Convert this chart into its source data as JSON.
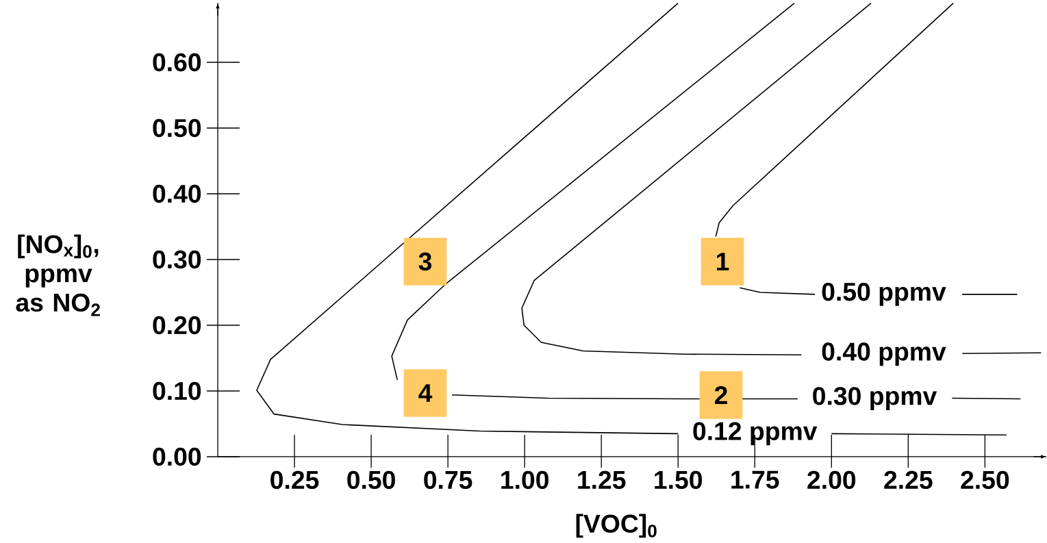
{
  "chart_data": {
    "type": "line",
    "xlabel": "[VOC]$_{0}$",
    "ylabel": "[NO$_{x}$]$_{0}$, ppmv as NO$_{2}$",
    "xlim": [
      0,
      2.7
    ],
    "ylim": [
      0,
      0.69
    ],
    "xticks": [
      0.25,
      {
        "value": 0.5,
        "label": "0.50"
      },
      0.75,
      {
        "value": 1.0,
        "label": "1.00"
      },
      1.25,
      {
        "value": 1.5,
        "label": "1.50"
      },
      1.75,
      {
        "value": 2.0,
        "label": "2.00"
      },
      2.25,
      {
        "value": 2.5,
        "label": "2.50"
      }
    ],
    "yticks": [
      {
        "value": 0,
        "label": "0.00"
      },
      {
        "value": 0.1,
        "label": "0.10"
      },
      {
        "value": 0.2,
        "label": "0.20"
      },
      {
        "value": 0.3,
        "label": "0.30"
      },
      {
        "value": 0.4,
        "label": "0.40"
      },
      {
        "value": 0.5,
        "label": "0.50"
      },
      {
        "value": 0.6,
        "label": "0.60"
      }
    ],
    "series": [
      {
        "name": "0.12 ppmv",
        "color": "#000000",
        "x": [
          1.5,
          0.172,
          0.127,
          0.183,
          0.406,
          0.853,
          1.5,
          1.75,
          2.0,
          2.57
        ],
        "values": [
          0.69,
          0.148,
          0.101,
          0.065,
          0.049,
          0.039,
          0.035,
          null,
          0.035,
          0.033
        ]
      },
      {
        "name": "0.30 ppmv",
        "color": "#000000",
        "x": [
          1.879,
          0.741,
          0.618,
          0.567,
          0.585,
          0.629,
          0.763,
          1.076,
          1.522,
          1.89,
          2.14,
          2.393,
          2.616
        ],
        "values": [
          0.69,
          0.262,
          0.208,
          0.153,
          0.117,
          null,
          0.094,
          0.089,
          0.088,
          0.088,
          null,
          0.089,
          0.088
        ]
      },
      {
        "name": "0.40 ppmv",
        "color": "#000000",
        "x": [
          2.129,
          1.031,
          0.991,
          0.998,
          1.054,
          1.19,
          1.522,
          1.902,
          2.17,
          2.426,
          2.683
        ],
        "values": [
          0.69,
          0.268,
          0.226,
          0.2,
          0.174,
          0.161,
          0.156,
          0.155,
          null,
          0.157,
          0.158
        ]
      },
      {
        "name": "0.50 ppmv",
        "color": "#000000",
        "x": [
          2.397,
          1.679,
          1.634,
          1.623,
          1.66,
          1.701,
          1.768,
          1.946,
          2.17,
          2.426,
          2.605
        ],
        "values": [
          0.69,
          0.382,
          0.356,
          0.335,
          null,
          0.257,
          0.25,
          0.247,
          null,
          0.247,
          0.247
        ]
      }
    ],
    "annotations": [
      "1",
      "2",
      "3",
      "4"
    ]
  }
}
